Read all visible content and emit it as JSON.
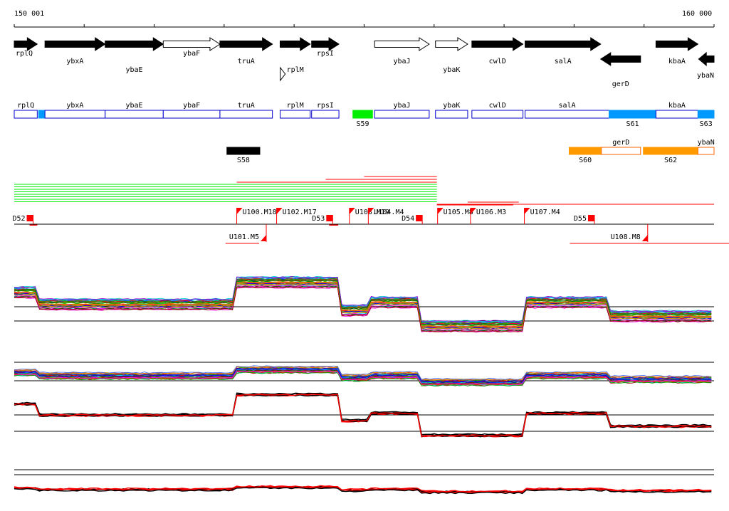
{
  "axis": {
    "start_label": "150 001",
    "end_label": "160 000",
    "start": 150001,
    "end": 160000
  },
  "colors": {
    "black": "#000000",
    "white": "#ffffff",
    "blue": "#0000cc",
    "lightblue": "#0099ff",
    "green": "#00ee00",
    "orange": "#ff9900",
    "red": "#ff0000",
    "grey": "#444444"
  },
  "genes": [
    {
      "name": "rplQ",
      "start": 150001,
      "end": 150330,
      "strand": "+",
      "filled": true,
      "label_row": 1
    },
    {
      "name": "ybxA",
      "start": 150440,
      "end": 151300,
      "strand": "+",
      "filled": true,
      "label_row": 2
    },
    {
      "name": "ybaE",
      "start": 151300,
      "end": 152130,
      "strand": "+",
      "filled": true,
      "label_row": 3
    },
    {
      "name": "ybaF",
      "start": 152130,
      "end": 152940,
      "strand": "+",
      "filled": false,
      "label_row": 1
    },
    {
      "name": "truA",
      "start": 152940,
      "end": 153690,
      "strand": "+",
      "filled": true,
      "label_row": 2
    },
    {
      "name": "rplM",
      "start": 153800,
      "end": 154230,
      "strand": "+",
      "filled": true,
      "label_row": 3
    },
    {
      "name": "rpsI",
      "start": 154250,
      "end": 154640,
      "strand": "+",
      "filled": true,
      "label_row": 1
    },
    {
      "name": "ybaJ",
      "start": 155150,
      "end": 155930,
      "strand": "+",
      "filled": false,
      "label_row": 2
    },
    {
      "name": "ybaK",
      "start": 156020,
      "end": 156480,
      "strand": "+",
      "filled": false,
      "label_row": 3
    },
    {
      "name": "cwlD",
      "start": 156540,
      "end": 157270,
      "strand": "+",
      "filled": true,
      "label_row": 2
    },
    {
      "name": "salA",
      "start": 157300,
      "end": 158380,
      "strand": "+",
      "filled": true,
      "label_row": 2
    },
    {
      "name": "gerD",
      "start": 158380,
      "end": 158950,
      "strand": "-",
      "filled": true,
      "label_row": 4
    },
    {
      "name": "kbaA",
      "start": 159170,
      "end": 159770,
      "strand": "+",
      "filled": true,
      "label_row": 2
    },
    {
      "name": "ybaN",
      "start": 159780,
      "end": 160000,
      "strand": "-",
      "filled": true,
      "label_row": 5
    }
  ],
  "small_marker": {
    "pos": 153680
  },
  "segments_row1": [
    {
      "name": "rplQ",
      "start": 150001,
      "end": 150330,
      "fill": "white",
      "label": "rplQ",
      "below": ""
    },
    {
      "name": "S56",
      "start": 150350,
      "end": 150440,
      "fill": "lightblue",
      "label": "",
      "below": ""
    },
    {
      "name": "ybxA",
      "start": 150440,
      "end": 151300,
      "fill": "white",
      "label": "ybxA",
      "below": ""
    },
    {
      "name": "ybaE",
      "start": 151300,
      "end": 152130,
      "fill": "white",
      "label": "ybaE",
      "below": ""
    },
    {
      "name": "ybaF",
      "start": 152130,
      "end": 152940,
      "fill": "white",
      "label": "ybaF",
      "below": ""
    },
    {
      "name": "truA",
      "start": 152940,
      "end": 153690,
      "fill": "white",
      "label": "truA",
      "below": ""
    },
    {
      "name": "rplM",
      "start": 153800,
      "end": 154230,
      "fill": "white",
      "label": "rplM",
      "below": ""
    },
    {
      "name": "rpsI",
      "start": 154250,
      "end": 154640,
      "fill": "white",
      "label": "rpsI",
      "below": ""
    },
    {
      "name": "S59",
      "start": 154840,
      "end": 155120,
      "fill": "green",
      "label": "",
      "below": "S59"
    },
    {
      "name": "ybaJ",
      "start": 155150,
      "end": 155930,
      "fill": "white",
      "label": "ybaJ",
      "below": ""
    },
    {
      "name": "ybaK",
      "start": 156020,
      "end": 156480,
      "fill": "white",
      "label": "ybaK",
      "below": ""
    },
    {
      "name": "cwlD",
      "start": 156540,
      "end": 157270,
      "fill": "white",
      "label": "cwlD",
      "below": ""
    },
    {
      "name": "salA",
      "start": 157300,
      "end": 158500,
      "fill": "white",
      "label": "salA",
      "below": ""
    },
    {
      "name": "S61",
      "start": 158500,
      "end": 159170,
      "fill": "lightblue",
      "label": "",
      "below": "S61"
    },
    {
      "name": "kbaA",
      "start": 159170,
      "end": 159770,
      "fill": "white",
      "label": "kbaA",
      "below": ""
    },
    {
      "name": "S63",
      "start": 159770,
      "end": 160000,
      "fill": "lightblue",
      "label": "",
      "below": "S63"
    }
  ],
  "segments_row2": [
    {
      "name": "S58",
      "start": 153040,
      "end": 153510,
      "fill": "black",
      "label": "",
      "below": "S58"
    },
    {
      "name": "S60",
      "start": 157930,
      "end": 158390,
      "fill": "orange",
      "label": "",
      "below": "S60"
    },
    {
      "name": "gerD",
      "start": 158390,
      "end": 158950,
      "fill": "white",
      "label": "gerD",
      "below": ""
    },
    {
      "name": "S62",
      "start": 158990,
      "end": 159770,
      "fill": "orange",
      "label": "",
      "below": "S62"
    },
    {
      "name": "ybaN",
      "start": 159770,
      "end": 160000,
      "fill": "white",
      "label": "ybaN",
      "below": ""
    }
  ],
  "transcription_lines": {
    "green_lines": {
      "count": 8,
      "start": 150001,
      "end": 156040
    },
    "red_long": [
      {
        "start": 153180,
        "end": 156040
      },
      {
        "start": 155000,
        "end": 156040
      },
      {
        "start": 154450,
        "end": 156040
      },
      {
        "start": 156480,
        "end": 157210
      },
      {
        "start": 156040,
        "end": 157130
      },
      {
        "start": 156040,
        "end": 160000
      }
    ],
    "red_short_top": [
      {
        "start": 150220,
        "end": 150330
      },
      {
        "start": 154500,
        "end": 154630
      }
    ],
    "red_reverse": [
      {
        "start": 153020,
        "end": 153500
      },
      {
        "start": 157940,
        "end": 160220
      }
    ]
  },
  "breakpoints_up": [
    {
      "label": "D52",
      "pos": 150220,
      "type": "down"
    },
    {
      "label": "U100.M18",
      "pos": 153180,
      "type": "up"
    },
    {
      "label": "U102.M17",
      "pos": 153750,
      "type": "up"
    },
    {
      "label": "D53",
      "pos": 154500,
      "type": "down"
    },
    {
      "label": "U103.M19",
      "pos": 154790,
      "type": "up"
    },
    {
      "label": "U104.M4",
      "pos": 155060,
      "type": "up"
    },
    {
      "label": "D54",
      "pos": 155780,
      "type": "down"
    },
    {
      "label": "U105.M8",
      "pos": 156050,
      "type": "up"
    },
    {
      "label": "U106.M3",
      "pos": 156520,
      "type": "up"
    },
    {
      "label": "U107.M4",
      "pos": 157290,
      "type": "up"
    },
    {
      "label": "D55",
      "pos": 158240,
      "type": "down"
    }
  ],
  "breakpoints_down": [
    {
      "label": "U101.M5",
      "pos": 153500
    },
    {
      "label": "U108.M8",
      "pos": 158950
    }
  ],
  "profile_panels": [
    {
      "name": "conditions-panel",
      "lines": 42,
      "baselines": [
        431,
        451
      ]
    },
    {
      "name": "secondary-panel",
      "lines": 36,
      "baselines": [
        509,
        535
      ]
    },
    {
      "name": "summary-panel",
      "lines": 6,
      "baselines": [
        583,
        606
      ]
    },
    {
      "name": "bottom-panel",
      "lines": 6,
      "baselines": [
        660,
        667
      ]
    }
  ],
  "chart_data": {
    "type": "line",
    "title": "",
    "xlabel": "",
    "ylabel": "",
    "xlim": [
      150001,
      160000
    ],
    "x_tick_labels": [
      "150 001",
      "160 000"
    ],
    "x_ticks": [
      150001,
      151000,
      152000,
      153000,
      154000,
      155000,
      156000,
      157000,
      158000,
      159000,
      160000
    ],
    "summary_profile": {
      "breakpoints": [
        150001,
        150350,
        153180,
        154650,
        155050,
        155800,
        157290,
        158500,
        160000
      ],
      "levels": [
        7.4,
        6.8,
        7.9,
        6.5,
        6.9,
        5.7,
        6.9,
        6.2,
        6.1
      ]
    }
  }
}
